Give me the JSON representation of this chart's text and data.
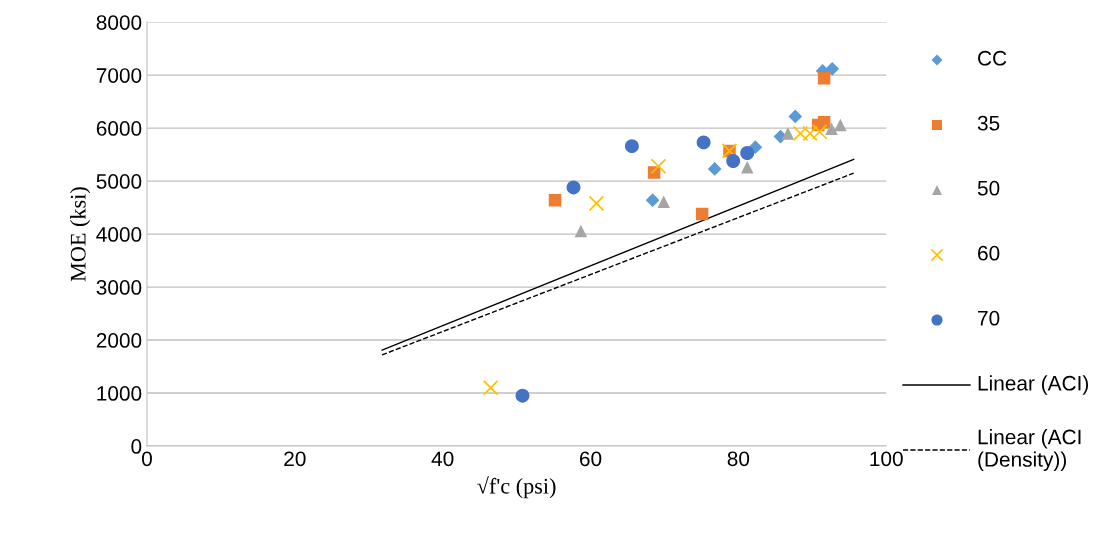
{
  "chart_data": {
    "type": "scatter",
    "xlabel": "√f'c (psi)",
    "ylabel": "MOE (ksi)",
    "xlim": [
      0,
      100
    ],
    "xticks": [
      0,
      20,
      40,
      60,
      80,
      100
    ],
    "ylim": [
      0,
      8000
    ],
    "yticks": [
      0,
      1000,
      2000,
      3000,
      4000,
      5000,
      6000,
      7000,
      8000
    ],
    "grid": "y",
    "legend": "right",
    "series": [
      {
        "name": "CC",
        "color": "#5b9bd5",
        "marker": "diamond",
        "x": [
          68.4,
          76.8,
          82.3,
          85.7,
          87.7,
          91.4,
          92.7
        ],
        "values": [
          4640,
          5230,
          5640,
          5840,
          6220,
          7080,
          7120
        ]
      },
      {
        "name": "35",
        "color": "#ed7d31",
        "marker": "square",
        "x": [
          55.2,
          68.6,
          75.1,
          78.8,
          91.6,
          90.8,
          91.6
        ],
        "values": [
          4640,
          5160,
          4380,
          5570,
          6940,
          6060,
          6110
        ]
      },
      {
        "name": "50",
        "color": "#a5a5a5",
        "marker": "triangle",
        "x": [
          58.7,
          69.9,
          81.2,
          86.7,
          92.6,
          93.8
        ],
        "values": [
          4060,
          4610,
          5260,
          5900,
          5990,
          6060
        ]
      },
      {
        "name": "60",
        "color": "#ffc000",
        "marker": "cross",
        "x": [
          46.5,
          60.8,
          69.2,
          78.8,
          88.4,
          89.7,
          91.0
        ],
        "values": [
          1100,
          4580,
          5280,
          5570,
          5900,
          5900,
          5930
        ]
      },
      {
        "name": "70",
        "color": "#4472c4",
        "marker": "circle",
        "x": [
          50.8,
          57.7,
          65.6,
          75.3,
          79.3,
          81.2
        ],
        "values": [
          950,
          4880,
          5660,
          5730,
          5380,
          5530
        ]
      },
      {
        "name": "Linear (ACI)",
        "type": "line",
        "color": "#000000",
        "marker": "none",
        "line_style": "solid",
        "x": [
          31.8,
          95.6
        ],
        "values": [
          1810,
          5410
        ]
      },
      {
        "name": "Linear (ACI (Density))",
        "type": "line",
        "color": "#000000",
        "marker": "none",
        "line_style": "dashed",
        "x": [
          31.8,
          95.6
        ],
        "values": [
          1720,
          5150
        ]
      }
    ]
  }
}
